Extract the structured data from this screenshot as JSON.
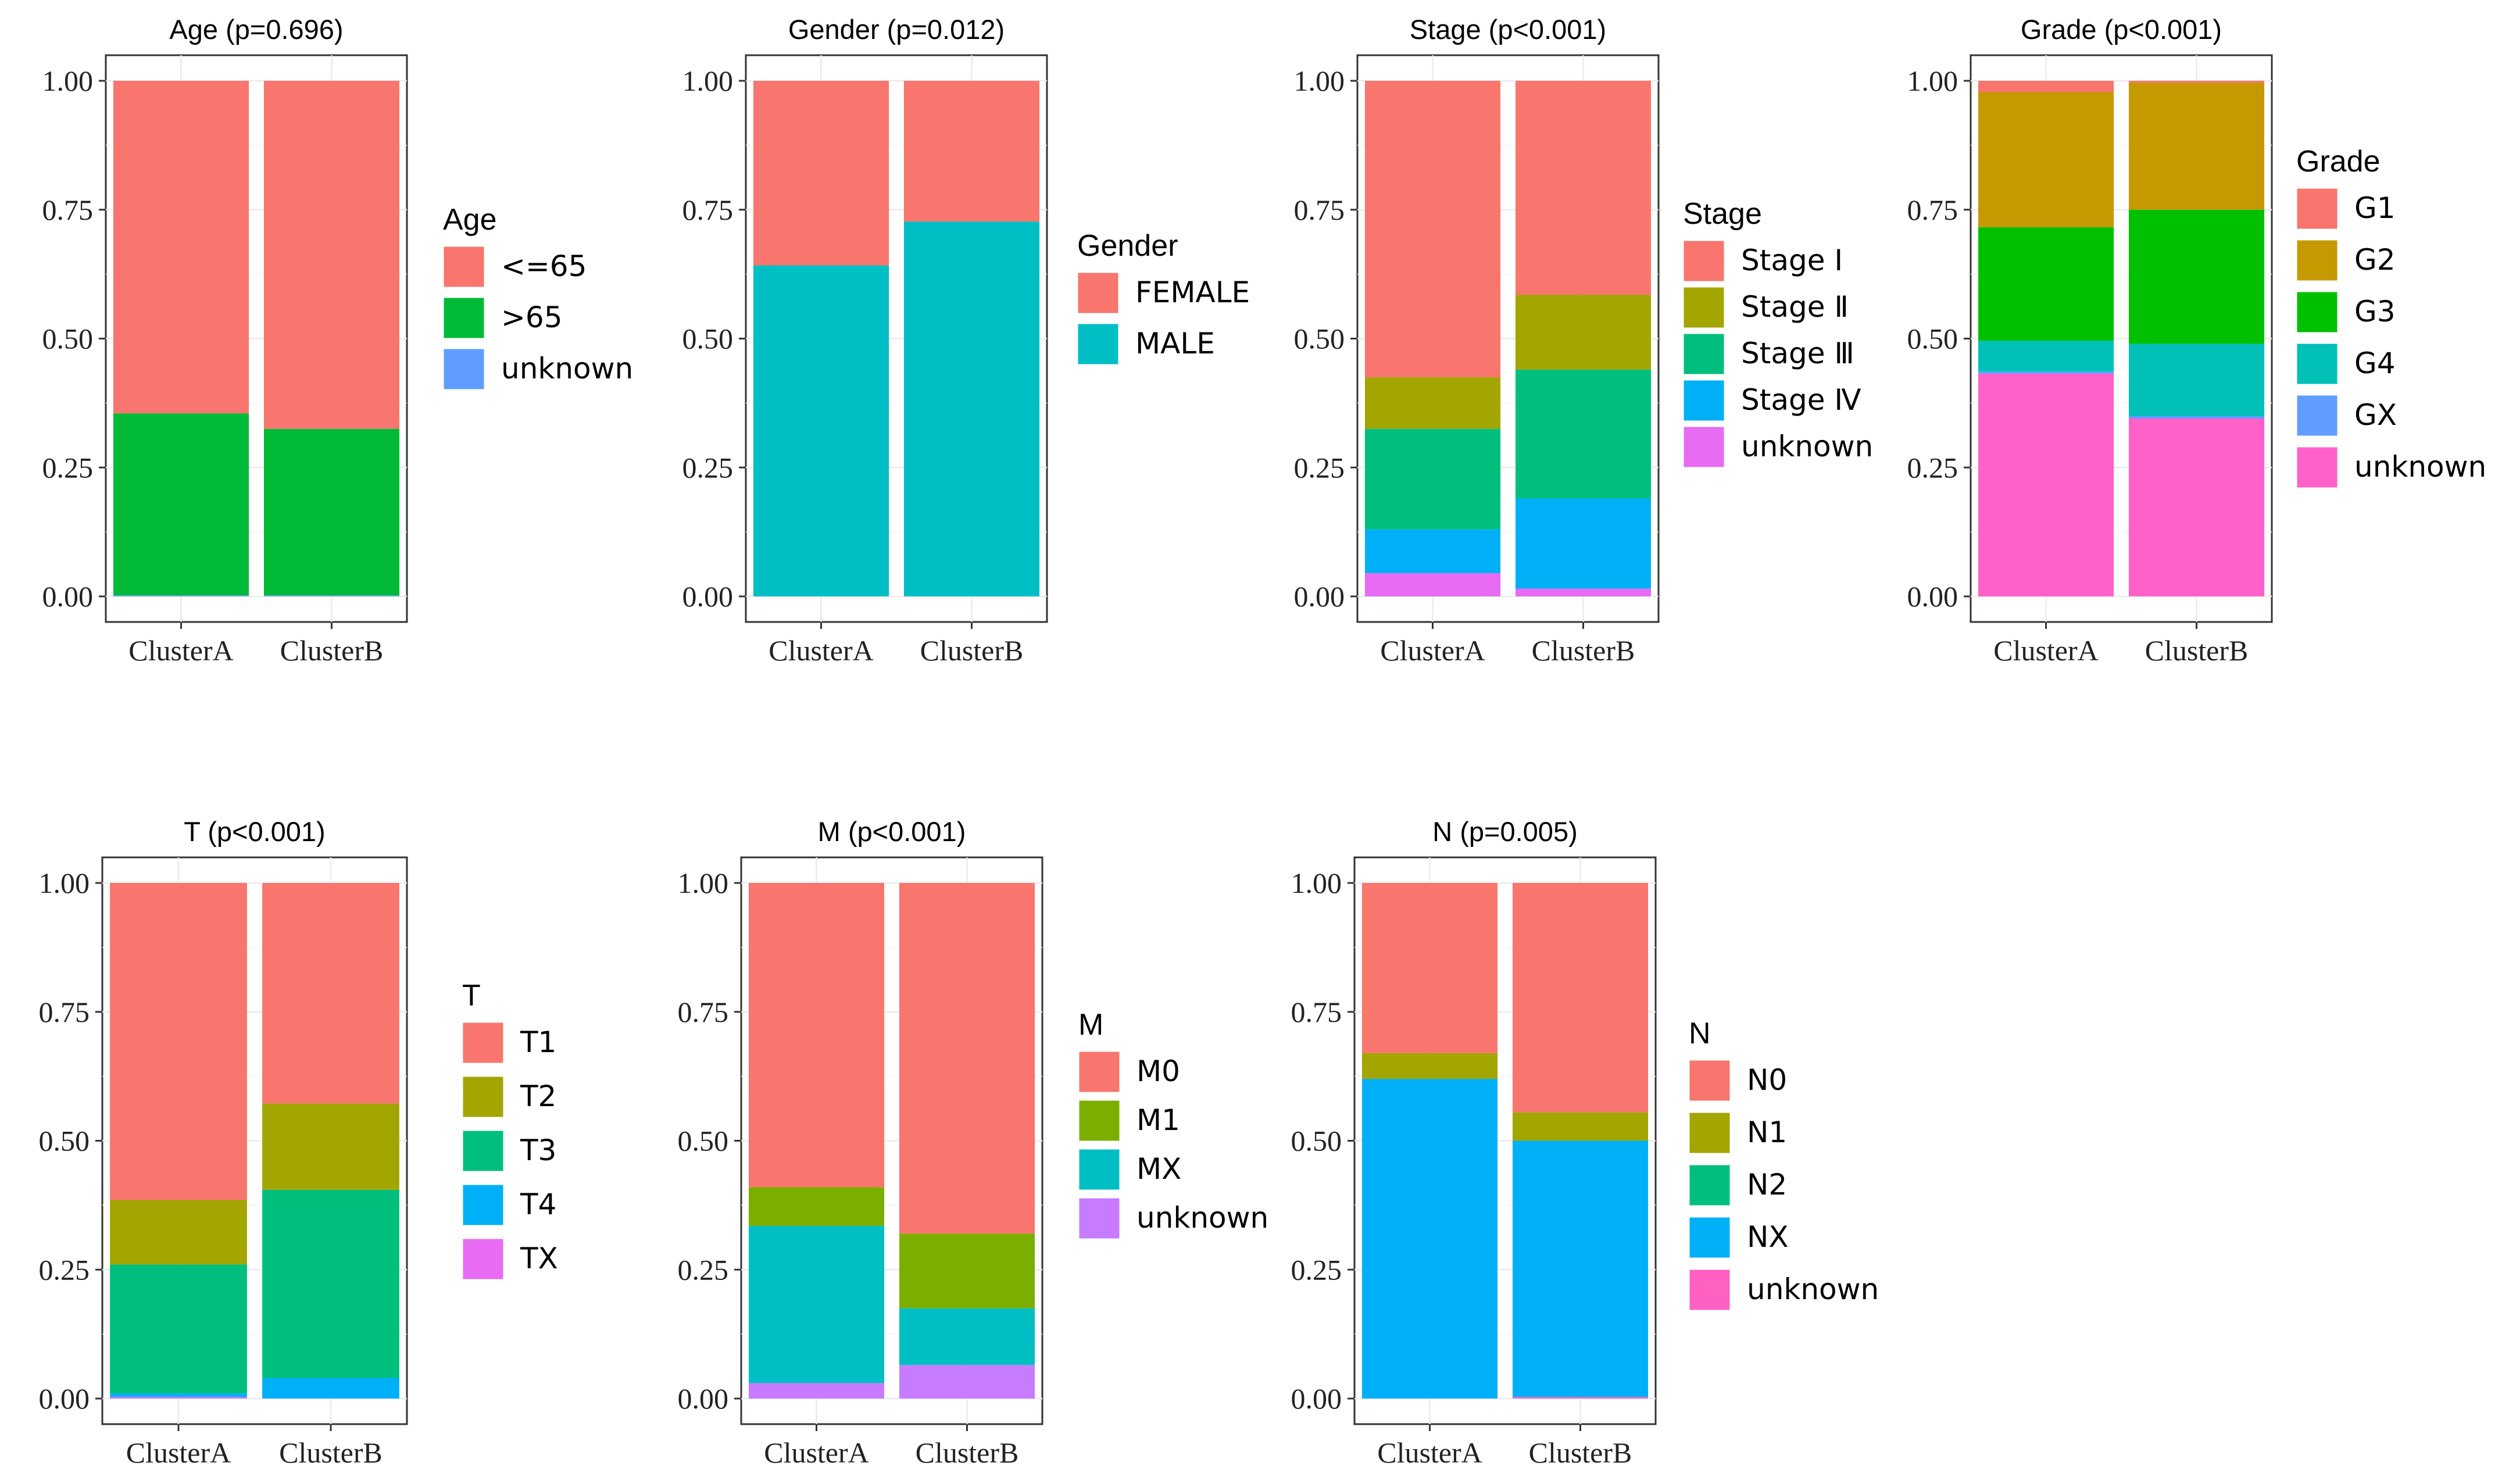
{
  "chart_data": [
    {
      "type": "bar",
      "stacked": true,
      "title": "Age (p=0.696)",
      "categories": [
        "ClusterA",
        "ClusterB"
      ],
      "ylim": [
        0,
        1
      ],
      "yticks": [
        "0.00",
        "0.25",
        "0.50",
        "0.75",
        "1.00"
      ],
      "legend_title": "Age",
      "series": [
        {
          "name": "<=65",
          "color": "#F8766D",
          "values": [
            0.645,
            0.675
          ]
        },
        {
          "name": ">65",
          "color": "#00BA38",
          "values": [
            0.353,
            0.323
          ]
        },
        {
          "name": "unknown",
          "color": "#619CFF",
          "values": [
            0.002,
            0.002
          ]
        }
      ]
    },
    {
      "type": "bar",
      "stacked": true,
      "title": "Gender (p=0.012)",
      "categories": [
        "ClusterA",
        "ClusterB"
      ],
      "ylim": [
        0,
        1
      ],
      "yticks": [
        "0.00",
        "0.25",
        "0.50",
        "0.75",
        "1.00"
      ],
      "legend_title": "Gender",
      "series": [
        {
          "name": "FEMALE",
          "color": "#F8766D",
          "values": [
            0.358,
            0.273
          ]
        },
        {
          "name": "MALE",
          "color": "#00BFC4",
          "values": [
            0.642,
            0.727
          ]
        }
      ]
    },
    {
      "type": "bar",
      "stacked": true,
      "title": "Stage (p<0.001)",
      "categories": [
        "ClusterA",
        "ClusterB"
      ],
      "ylim": [
        0,
        1
      ],
      "yticks": [
        "0.00",
        "0.25",
        "0.50",
        "0.75",
        "1.00"
      ],
      "legend_title": "Stage",
      "series": [
        {
          "name": "Stage Ⅰ",
          "color": "#F8766D",
          "values": [
            0.575,
            0.415
          ]
        },
        {
          "name": "Stage Ⅱ",
          "color": "#A3A500",
          "values": [
            0.1,
            0.145
          ]
        },
        {
          "name": "Stage Ⅲ",
          "color": "#00BF7D",
          "values": [
            0.195,
            0.25
          ]
        },
        {
          "name": "Stage Ⅳ",
          "color": "#00B0F6",
          "values": [
            0.085,
            0.175
          ]
        },
        {
          "name": "unknown",
          "color": "#E76BF3",
          "values": [
            0.045,
            0.015
          ]
        }
      ]
    },
    {
      "type": "bar",
      "stacked": true,
      "title": "Grade (p<0.001)",
      "categories": [
        "ClusterA",
        "ClusterB"
      ],
      "ylim": [
        0,
        1
      ],
      "yticks": [
        "0.00",
        "0.25",
        "0.50",
        "0.75",
        "1.00"
      ],
      "legend_title": "Grade",
      "series": [
        {
          "name": "G1",
          "color": "#F8766D",
          "values": [
            0.022,
            0.004
          ]
        },
        {
          "name": "G2",
          "color": "#C49A00",
          "values": [
            0.262,
            0.246
          ]
        },
        {
          "name": "G3",
          "color": "#00C000",
          "values": [
            0.22,
            0.26
          ]
        },
        {
          "name": "G4",
          "color": "#00C0B8",
          "values": [
            0.06,
            0.14
          ]
        },
        {
          "name": "GX",
          "color": "#619CFF",
          "values": [
            0.004,
            0.005
          ]
        },
        {
          "name": "unknown",
          "color": "#FF61C9",
          "values": [
            0.432,
            0.345
          ]
        }
      ]
    },
    {
      "type": "bar",
      "stacked": true,
      "title": "T (p<0.001)",
      "categories": [
        "ClusterA",
        "ClusterB"
      ],
      "ylim": [
        0,
        1
      ],
      "yticks": [
        "0.00",
        "0.25",
        "0.50",
        "0.75",
        "1.00"
      ],
      "legend_title": "T",
      "series": [
        {
          "name": "T1",
          "color": "#F8766D",
          "values": [
            0.615,
            0.428
          ]
        },
        {
          "name": "T2",
          "color": "#A3A500",
          "values": [
            0.125,
            0.167
          ]
        },
        {
          "name": "T3",
          "color": "#00BF7D",
          "values": [
            0.25,
            0.365
          ]
        },
        {
          "name": "T4",
          "color": "#00B0F6",
          "values": [
            0.007,
            0.04
          ]
        },
        {
          "name": "TX",
          "color": "#E76BF3",
          "values": [
            0.003,
            0.0
          ]
        }
      ]
    },
    {
      "type": "bar",
      "stacked": true,
      "title": "M (p<0.001)",
      "categories": [
        "ClusterA",
        "ClusterB"
      ],
      "ylim": [
        0,
        1
      ],
      "yticks": [
        "0.00",
        "0.25",
        "0.50",
        "0.75",
        "1.00"
      ],
      "legend_title": "M",
      "series": [
        {
          "name": "M0",
          "color": "#F8766D",
          "values": [
            0.59,
            0.68
          ]
        },
        {
          "name": "M1",
          "color": "#7CAE00",
          "values": [
            0.075,
            0.145
          ]
        },
        {
          "name": "MX",
          "color": "#00BFC4",
          "values": [
            0.305,
            0.11
          ]
        },
        {
          "name": "unknown",
          "color": "#C77CFF",
          "values": [
            0.03,
            0.065
          ]
        }
      ]
    },
    {
      "type": "bar",
      "stacked": true,
      "title": "N (p=0.005)",
      "categories": [
        "ClusterA",
        "ClusterB"
      ],
      "ylim": [
        0,
        1
      ],
      "yticks": [
        "0.00",
        "0.25",
        "0.50",
        "0.75",
        "1.00"
      ],
      "legend_title": "N",
      "series": [
        {
          "name": "N0",
          "color": "#F8766D",
          "values": [
            0.33,
            0.445
          ]
        },
        {
          "name": "N1",
          "color": "#A3A500",
          "values": [
            0.05,
            0.055
          ]
        },
        {
          "name": "N2",
          "color": "#00BF7D",
          "values": [
            0.0,
            0.0
          ]
        },
        {
          "name": "NX",
          "color": "#00B0F6",
          "values": [
            0.62,
            0.497
          ]
        },
        {
          "name": "unknown",
          "color": "#FF61C3",
          "values": [
            0.0,
            0.003
          ]
        }
      ]
    }
  ]
}
